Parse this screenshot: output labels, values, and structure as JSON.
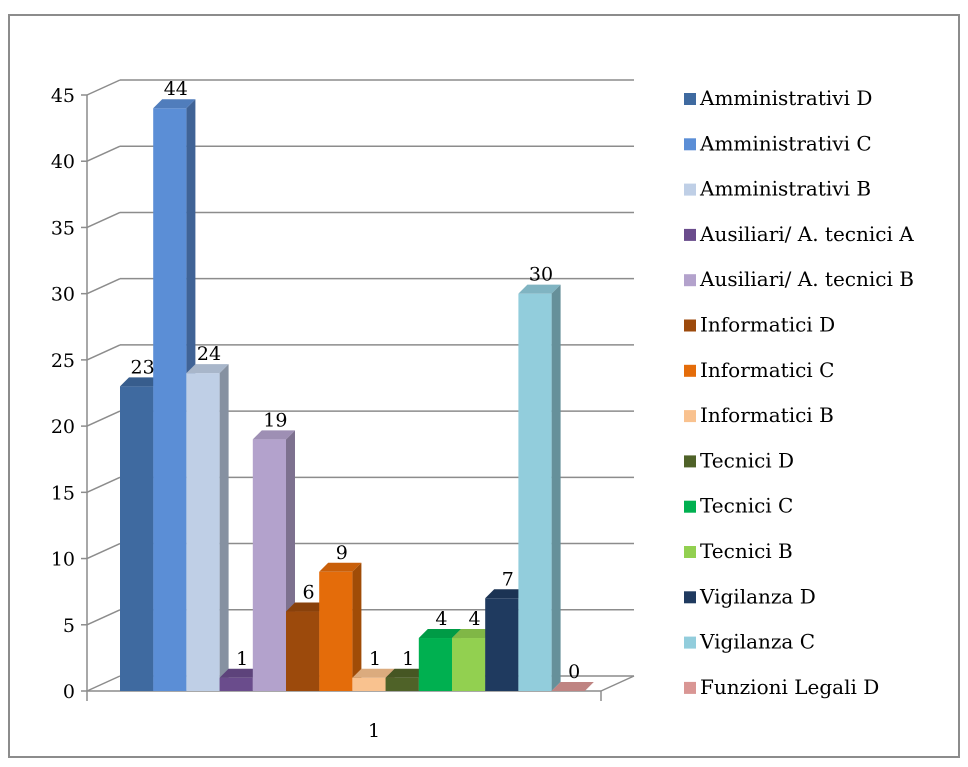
{
  "chart_data": {
    "type": "bar",
    "categories": [
      "1"
    ],
    "ylim": [
      0,
      45
    ],
    "yticks": [
      0,
      5,
      10,
      15,
      20,
      25,
      30,
      35,
      40,
      45
    ],
    "grid": true,
    "legend_position": "right",
    "series": [
      {
        "name": "Amministrativi D",
        "values": [
          23
        ],
        "color": "#3f6aa0"
      },
      {
        "name": "Amministrativi C",
        "values": [
          44
        ],
        "color": "#5b8ed6"
      },
      {
        "name": "Amministrativi B",
        "values": [
          24
        ],
        "color": "#bfcfe6"
      },
      {
        "name": "Ausiliari/ A. tecnici A",
        "values": [
          1
        ],
        "color": "#6a4c8c"
      },
      {
        "name": "Ausiliari/ A. tecnici B",
        "values": [
          19
        ],
        "color": "#b3a2cc"
      },
      {
        "name": "Informatici D",
        "values": [
          6
        ],
        "color": "#9c4a0c"
      },
      {
        "name": "Informatici C",
        "values": [
          9
        ],
        "color": "#e46c0a"
      },
      {
        "name": "Informatici B",
        "values": [
          1
        ],
        "color": "#f9c28f"
      },
      {
        "name": "Tecnici D",
        "values": [
          1
        ],
        "color": "#4f6228"
      },
      {
        "name": "Tecnici C",
        "values": [
          4
        ],
        "color": "#00b050"
      },
      {
        "name": "Tecnici B",
        "values": [
          4
        ],
        "color": "#92d050"
      },
      {
        "name": "Vigilanza D",
        "values": [
          7
        ],
        "color": "#1f3a5f"
      },
      {
        "name": "Vigilanza C",
        "values": [
          30
        ],
        "color": "#92cddc"
      },
      {
        "name": "Funzioni Legali D",
        "values": [
          0
        ],
        "color": "#d99694"
      }
    ]
  }
}
